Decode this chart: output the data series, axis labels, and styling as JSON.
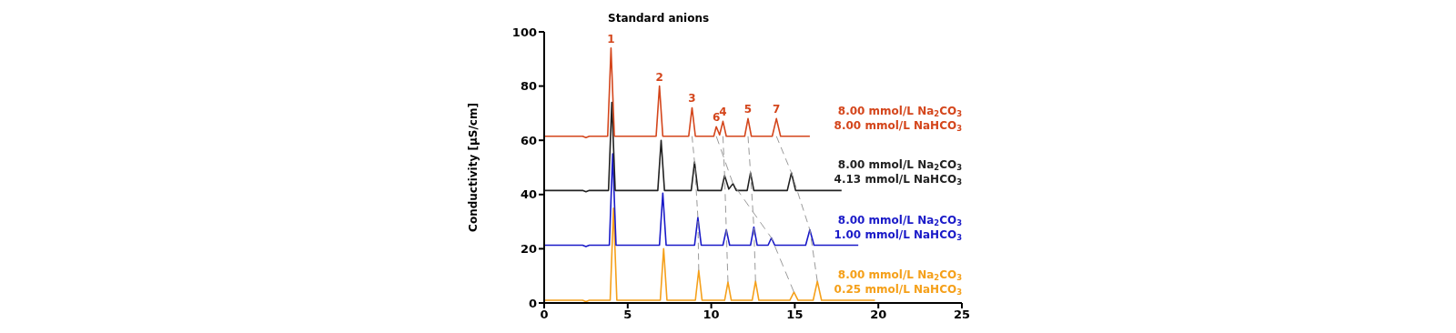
{
  "chart_data": {
    "type": "line",
    "title": "Standard anions",
    "ylabel": "Conductivity [µS/cm]",
    "xlim": [
      0,
      25
    ],
    "xticks": [
      0,
      5,
      10,
      15,
      20,
      25
    ],
    "ylim": [
      0,
      100
    ],
    "yticks": [
      0,
      20,
      40,
      60,
      80,
      100
    ],
    "marker": "none",
    "series": [
      {
        "color": "#9a9a9a",
        "line_style": "dashed",
        "x": [
          8.85,
          9.0,
          9.2,
          9.25
        ],
        "values": [
          61.5,
          52,
          31.5,
          12
        ]
      },
      {
        "color": "#9a9a9a",
        "line_style": "dashed",
        "x": [
          10.7,
          10.8,
          10.9,
          11.0
        ],
        "values": [
          61.5,
          47,
          27,
          7.7
        ]
      },
      {
        "color": "#9a9a9a",
        "line_style": "dashed",
        "x": [
          10.3,
          11.3,
          13.6,
          14.95
        ],
        "values": [
          61.5,
          44,
          24,
          4
        ]
      },
      {
        "color": "#9a9a9a",
        "line_style": "dashed",
        "x": [
          12.2,
          12.35,
          12.55,
          12.65
        ],
        "values": [
          61.5,
          48,
          28,
          8
        ]
      },
      {
        "color": "#9a9a9a",
        "line_style": "dashed",
        "x": [
          13.9,
          14.8,
          15.9,
          16.35
        ],
        "values": [
          61.5,
          48,
          27,
          8
        ]
      },
      {
        "name": "8.00 mmol/L Na$_{2}$CO$_{3}$\n0.25 mmol/L NaHCO$_{3}$",
        "color": "#f5a01a",
        "line_style": "solid",
        "x": [
          0,
          2.3,
          2.5,
          2.7,
          3.95,
          4.15,
          4.35,
          6.95,
          7.15,
          7.35,
          9.05,
          9.25,
          9.45,
          10.8,
          11.0,
          11.2,
          12.45,
          12.65,
          12.85,
          14.7,
          14.95,
          15.2,
          16.1,
          16.35,
          16.6,
          19.8
        ],
        "values": [
          1,
          1,
          0.5,
          1,
          1,
          35,
          1,
          1,
          20,
          1,
          1,
          12,
          1,
          1,
          7.7,
          1,
          1,
          8,
          1,
          1,
          4,
          1,
          1,
          8,
          1,
          1
        ]
      },
      {
        "name": "8.00 mmol/L Na$_{2}$CO$_{3}$\n1.00 mmol/L NaHCO$_{3}$",
        "color": "#1a1ac8",
        "line_style": "solid",
        "x": [
          0,
          2.3,
          2.5,
          2.7,
          3.9,
          4.1,
          4.3,
          6.9,
          7.1,
          7.3,
          9.0,
          9.2,
          9.4,
          10.7,
          10.9,
          11.1,
          12.35,
          12.55,
          12.75,
          13.4,
          13.6,
          13.8,
          15.65,
          15.9,
          16.15,
          18.8
        ],
        "values": [
          21.3,
          21.3,
          20.8,
          21.3,
          21.3,
          55,
          21.3,
          21.3,
          40.5,
          21.3,
          21.3,
          31.5,
          21.3,
          21.3,
          27,
          21.3,
          21.3,
          28,
          21.3,
          21.3,
          24,
          21.3,
          21.3,
          27,
          21.3,
          21.3
        ]
      },
      {
        "name": "8.00 mmol/L Na$_{2}$CO$_{3}$\n4.13 mmol/L NaHCO$_{3}$",
        "color": "#222222",
        "line_style": "solid",
        "x": [
          0,
          2.3,
          2.5,
          2.7,
          3.85,
          4.05,
          4.25,
          6.8,
          7.0,
          7.2,
          8.8,
          9.0,
          9.2,
          10.6,
          10.8,
          11.05,
          11.3,
          11.5,
          12.15,
          12.35,
          12.55,
          14.55,
          14.8,
          15.05,
          17.8
        ],
        "values": [
          41.5,
          41.5,
          41,
          41.5,
          41.5,
          74,
          41.5,
          41.5,
          60,
          41.5,
          41.5,
          52,
          41.5,
          41.5,
          47,
          42,
          44,
          41.5,
          41.5,
          48,
          41.5,
          41.5,
          48,
          41.5,
          41.5
        ]
      },
      {
        "name": "8.00 mmol/L Na$_{2}$CO$_{3}$\n8.00 mmol/L NaHCO$_{3}$",
        "color": "#d4461c",
        "line_style": "solid",
        "x": [
          0,
          2.3,
          2.5,
          2.7,
          3.8,
          4.0,
          4.2,
          6.7,
          6.9,
          7.1,
          8.65,
          8.85,
          9.05,
          10.15,
          10.3,
          10.5,
          10.7,
          10.9,
          12.0,
          12.2,
          12.4,
          13.65,
          13.9,
          14.15,
          15.9
        ],
        "values": [
          61.5,
          61.5,
          61,
          61.5,
          61.5,
          94,
          61.5,
          61.5,
          80,
          61.5,
          61.5,
          72,
          61.5,
          61.5,
          65,
          62,
          67,
          61.5,
          61.5,
          68,
          61.5,
          61.5,
          68,
          61.5,
          61.5
        ]
      }
    ],
    "annotations": [
      {
        "text": "1",
        "x": 4.0,
        "y": 94
      },
      {
        "text": "2",
        "x": 6.9,
        "y": 80
      },
      {
        "text": "3",
        "x": 8.85,
        "y": 72
      },
      {
        "text": "6",
        "x": 10.3,
        "y": 65
      },
      {
        "text": "4",
        "x": 10.7,
        "y": 67
      },
      {
        "text": "5",
        "x": 12.2,
        "y": 68
      },
      {
        "text": "7",
        "x": 13.9,
        "y": 68
      }
    ]
  }
}
